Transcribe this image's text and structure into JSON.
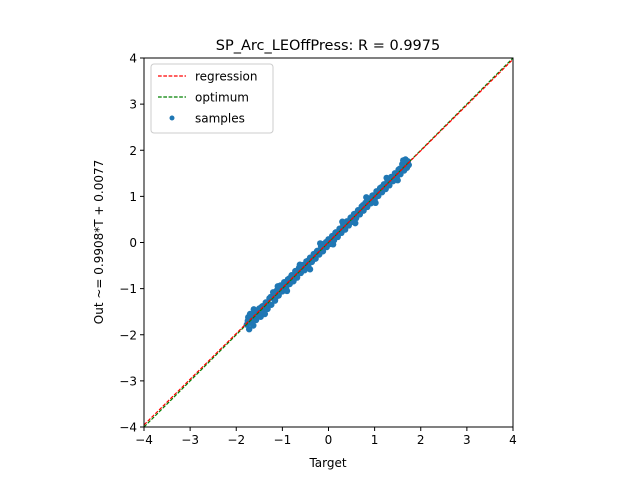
{
  "chart_data": {
    "type": "scatter",
    "title": "SP_Arc_LEOffPress: R = 0.9975",
    "xlabel": "Target",
    "ylabel": "Out ~= 0.9908*T + 0.0077",
    "xlim": [
      -4,
      4
    ],
    "ylim": [
      -4,
      4
    ],
    "xticks": [
      "−4",
      "−3",
      "−2",
      "−1",
      "0",
      "1",
      "2",
      "3",
      "4"
    ],
    "yticks": [
      "−4",
      "−3",
      "−2",
      "−1",
      "0",
      "1",
      "2",
      "3",
      "4"
    ],
    "grid": false,
    "legend_position": "top-left",
    "regression": {
      "name": "regression",
      "slope": 0.9908,
      "intercept": 0.0077,
      "color": "#ff0000"
    },
    "optimum": {
      "name": "optimum",
      "slope": 1,
      "intercept": 0,
      "color": "#008000"
    },
    "samples": {
      "name": "samples",
      "color": "#1f77b4",
      "points": [
        [
          -1.77,
          -1.78
        ],
        [
          -1.74,
          -1.62
        ],
        [
          -1.72,
          -1.88
        ],
        [
          -1.7,
          -1.55
        ],
        [
          -1.68,
          -1.74
        ],
        [
          -1.66,
          -1.66
        ],
        [
          -1.63,
          -1.8
        ],
        [
          -1.6,
          -1.5
        ],
        [
          -1.57,
          -1.68
        ],
        [
          -1.54,
          -1.58
        ],
        [
          -1.5,
          -1.43
        ],
        [
          -1.47,
          -1.61
        ],
        [
          -1.43,
          -1.38
        ],
        [
          -1.4,
          -1.49
        ],
        [
          -1.36,
          -1.3
        ],
        [
          -1.32,
          -1.44
        ],
        [
          -1.28,
          -1.21
        ],
        [
          -1.24,
          -1.35
        ],
        [
          -1.2,
          -1.08
        ],
        [
          -1.16,
          -1.26
        ],
        [
          -1.12,
          -1.04
        ],
        [
          -1.08,
          -1.15
        ],
        [
          -1.04,
          -0.93
        ],
        [
          -1.0,
          -1.06
        ],
        [
          -0.96,
          -0.86
        ],
        [
          -0.92,
          -0.98
        ],
        [
          -0.88,
          -0.8
        ],
        [
          -0.84,
          -0.9
        ],
        [
          -0.8,
          -0.71
        ],
        [
          -0.76,
          -0.84
        ],
        [
          -0.72,
          -0.62
        ],
        [
          -0.68,
          -0.76
        ],
        [
          -0.64,
          -0.55
        ],
        [
          -0.6,
          -0.66
        ],
        [
          -0.56,
          -0.49
        ],
        [
          -0.52,
          -0.6
        ],
        [
          -0.48,
          -0.41
        ],
        [
          -0.44,
          -0.51
        ],
        [
          -0.4,
          -0.33
        ],
        [
          -0.36,
          -0.42
        ],
        [
          -0.32,
          -0.25
        ],
        [
          -0.28,
          -0.35
        ],
        [
          -0.24,
          -0.18
        ],
        [
          -0.2,
          -0.26
        ],
        [
          -0.16,
          -0.09
        ],
        [
          -0.12,
          -0.19
        ],
        [
          -0.08,
          -0.02
        ],
        [
          -0.04,
          -0.1
        ],
        [
          0.0,
          0.07
        ],
        [
          0.04,
          -0.03
        ],
        [
          0.08,
          0.14
        ],
        [
          0.12,
          0.05
        ],
        [
          0.16,
          0.22
        ],
        [
          0.2,
          0.12
        ],
        [
          0.24,
          0.3
        ],
        [
          0.28,
          0.21
        ],
        [
          0.32,
          0.38
        ],
        [
          0.36,
          0.28
        ],
        [
          0.4,
          0.46
        ],
        [
          0.44,
          0.37
        ],
        [
          0.48,
          0.54
        ],
        [
          0.52,
          0.45
        ],
        [
          0.56,
          0.62
        ],
        [
          0.6,
          0.53
        ],
        [
          0.64,
          0.7
        ],
        [
          0.68,
          0.61
        ],
        [
          0.72,
          0.78
        ],
        [
          0.76,
          0.69
        ],
        [
          0.8,
          0.86
        ],
        [
          0.84,
          0.77
        ],
        [
          0.88,
          0.95
        ],
        [
          0.92,
          0.85
        ],
        [
          0.96,
          1.02
        ],
        [
          1.0,
          0.93
        ],
        [
          1.04,
          1.11
        ],
        [
          1.08,
          1.01
        ],
        [
          1.12,
          1.18
        ],
        [
          1.16,
          1.09
        ],
        [
          1.2,
          1.26
        ],
        [
          1.24,
          1.16
        ],
        [
          1.28,
          1.34
        ],
        [
          1.32,
          1.24
        ],
        [
          1.36,
          1.42
        ],
        [
          1.4,
          1.33
        ],
        [
          1.44,
          1.5
        ],
        [
          1.48,
          1.4
        ],
        [
          1.52,
          1.58
        ],
        [
          1.56,
          1.48
        ],
        [
          1.6,
          1.7
        ],
        [
          1.64,
          1.56
        ],
        [
          1.67,
          1.8
        ],
        [
          1.7,
          1.62
        ],
        [
          1.72,
          1.76
        ],
        [
          1.74,
          1.68
        ],
        [
          -1.75,
          -1.7
        ],
        [
          -1.65,
          -1.55
        ],
        [
          -1.55,
          -1.62
        ],
        [
          -1.45,
          -1.4
        ],
        [
          -1.35,
          -1.38
        ],
        [
          -1.25,
          -1.18
        ],
        [
          -1.15,
          -1.2
        ],
        [
          -1.05,
          -0.98
        ],
        [
          -0.95,
          -0.98
        ],
        [
          -0.85,
          -0.78
        ],
        [
          -0.75,
          -0.8
        ],
        [
          -0.65,
          -0.6
        ],
        [
          -0.55,
          -0.58
        ],
        [
          -0.45,
          -0.4
        ],
        [
          -0.35,
          -0.39
        ],
        [
          -0.25,
          -0.19
        ],
        [
          -0.15,
          -0.18
        ],
        [
          -0.05,
          0.01
        ],
        [
          0.05,
          0.02
        ],
        [
          0.15,
          0.21
        ],
        [
          0.25,
          0.22
        ],
        [
          0.35,
          0.41
        ],
        [
          0.45,
          0.42
        ],
        [
          0.55,
          0.61
        ],
        [
          0.65,
          0.62
        ],
        [
          0.75,
          0.81
        ],
        [
          0.85,
          0.82
        ],
        [
          0.95,
          1.01
        ],
        [
          1.05,
          1.02
        ],
        [
          1.15,
          1.2
        ],
        [
          1.25,
          1.22
        ],
        [
          1.35,
          1.4
        ],
        [
          1.45,
          1.42
        ],
        [
          1.55,
          1.6
        ],
        [
          1.65,
          1.63
        ],
        [
          1.71,
          1.72
        ],
        [
          -1.62,
          -1.45
        ],
        [
          -1.38,
          -1.55
        ],
        [
          -1.1,
          -0.95
        ],
        [
          -0.9,
          -1.05
        ],
        [
          -0.62,
          -0.48
        ],
        [
          -0.4,
          -0.58
        ],
        [
          -0.18,
          -0.02
        ],
        [
          0.1,
          -0.04
        ],
        [
          0.3,
          0.45
        ],
        [
          0.58,
          0.42
        ],
        [
          0.82,
          0.98
        ],
        [
          1.02,
          0.86
        ],
        [
          1.26,
          1.4
        ],
        [
          1.5,
          1.35
        ],
        [
          1.62,
          1.78
        ],
        [
          -1.48,
          -1.52
        ],
        [
          -0.7,
          -0.7
        ],
        [
          0.02,
          0.02
        ],
        [
          0.7,
          0.7
        ],
        [
          1.4,
          1.4
        ]
      ]
    }
  }
}
